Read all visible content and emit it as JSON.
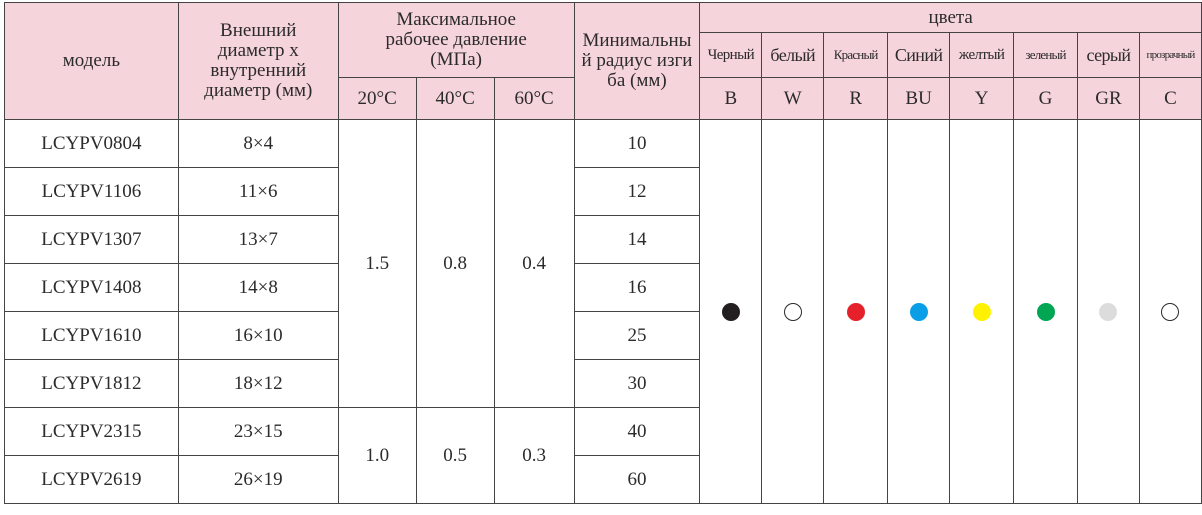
{
  "headers": {
    "model": "модель",
    "diameter": "Внешний диаметр х внутренний диаметр (мм)",
    "pressure": "Максимальное рабочее давление (МПа)",
    "radius": "Минимальный радиус изгиба (мм)",
    "colors": "цвета",
    "temps": [
      "20°C",
      "40°C",
      "60°C"
    ]
  },
  "color_columns": [
    {
      "name": "Черный",
      "code": "B",
      "dot": "#231f20",
      "outline": false
    },
    {
      "name": "белый",
      "code": "W",
      "dot": "#ffffff",
      "outline": true
    },
    {
      "name": "Красный",
      "code": "R",
      "dot": "#e5202b",
      "outline": false
    },
    {
      "name": "Синий",
      "code": "BU",
      "dot": "#0a9ee6",
      "outline": false
    },
    {
      "name": "желтый",
      "code": "Y",
      "dot": "#fff200",
      "outline": false
    },
    {
      "name": "зеленый",
      "code": "G",
      "dot": "#00a651",
      "outline": false
    },
    {
      "name": "серый",
      "code": "GR",
      "dot": "#dcdcdc",
      "outline": false
    },
    {
      "name": "прозрачный",
      "code": "C",
      "dot": "#ffffff",
      "outline": true
    }
  ],
  "rows": [
    {
      "model": "LCYPV0804",
      "size": "8×4",
      "radius": "10"
    },
    {
      "model": "LCYPV1106",
      "size": "11×6",
      "radius": "12"
    },
    {
      "model": "LCYPV1307",
      "size": "13×7",
      "radius": "14"
    },
    {
      "model": "LCYPV1408",
      "size": "14×8",
      "radius": "16"
    },
    {
      "model": "LCYPV1610",
      "size": "16×10",
      "radius": "25"
    },
    {
      "model": "LCYPV1812",
      "size": "18×12",
      "radius": "30"
    },
    {
      "model": "LCYPV2315",
      "size": "23×15",
      "radius": "40"
    },
    {
      "model": "LCYPV2619",
      "size": "26×19",
      "radius": "60"
    }
  ],
  "pressure_groups": [
    {
      "rows": 6,
      "values": [
        "1.5",
        "0.8",
        "0.4"
      ]
    },
    {
      "rows": 2,
      "values": [
        "1.0",
        "0.5",
        "0.3"
      ]
    }
  ]
}
